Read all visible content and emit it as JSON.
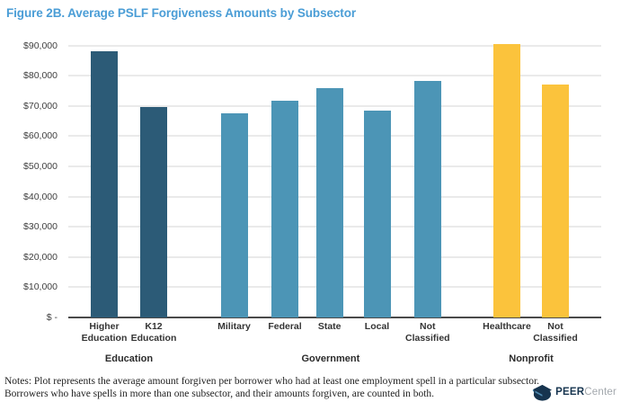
{
  "title": "Figure 2B. Average PSLF Forgiveness Amounts by Subsector",
  "notes": {
    "line1": "Notes: Plot represents the average amount forgiven per borrower who had at least one employment spell in a particular subsector.",
    "line2": "Borrowers who have spells in more than one subsector, and their amounts forgiven, are counted in both."
  },
  "logo": {
    "bold_text": "PEER",
    "light_text": "Center",
    "icon": "graduation-cap-icon"
  },
  "colors": {
    "title_blue": "#4A9DD6",
    "education_bar": "#2C5B77",
    "government_bar": "#4C95B6",
    "nonprofit_bar": "#FBC33C",
    "gridline": "#EAEAEA",
    "axis_line": "#4A4A4A",
    "tick_label": "#3F3F3F",
    "bar_label": "#343434",
    "group_label": "#2B2B2B",
    "notes_text": "#1F1F1F",
    "logo_navy": "#16344F",
    "logo_gray": "#A2A7AC",
    "logo_accent": "#4E8AB0"
  },
  "chart_data": {
    "type": "bar",
    "title": "Figure 2B. Average PSLF Forgiveness Amounts by Subsector",
    "xlabel": "",
    "ylabel": "",
    "ylim": [
      0,
      90000
    ],
    "ytick_step": 10000,
    "ytick_labels": [
      "$ -",
      "$10,000",
      "$20,000",
      "$30,000",
      "$40,000",
      "$50,000",
      "$60,000",
      "$70,000",
      "$80,000",
      "$90,000"
    ],
    "grid": true,
    "legend": "none",
    "groups": [
      {
        "label": "Education",
        "color_key": "education_bar",
        "bars": [
          {
            "label": "Higher Education",
            "value": 88000
          },
          {
            "label": "K12 Education",
            "value": 69500
          }
        ]
      },
      {
        "label": "Government",
        "color_key": "government_bar",
        "bars": [
          {
            "label": "Military",
            "value": 67500
          },
          {
            "label": "Federal",
            "value": 71700
          },
          {
            "label": "State",
            "value": 76000
          },
          {
            "label": "Local",
            "value": 68500
          },
          {
            "label": "Not Classified",
            "value": 78100
          }
        ]
      },
      {
        "label": "Nonprofit",
        "color_key": "nonprofit_bar",
        "bars": [
          {
            "label": "Healthcare",
            "value": 90300
          },
          {
            "label": "Not Classified",
            "value": 77000
          }
        ]
      }
    ]
  }
}
